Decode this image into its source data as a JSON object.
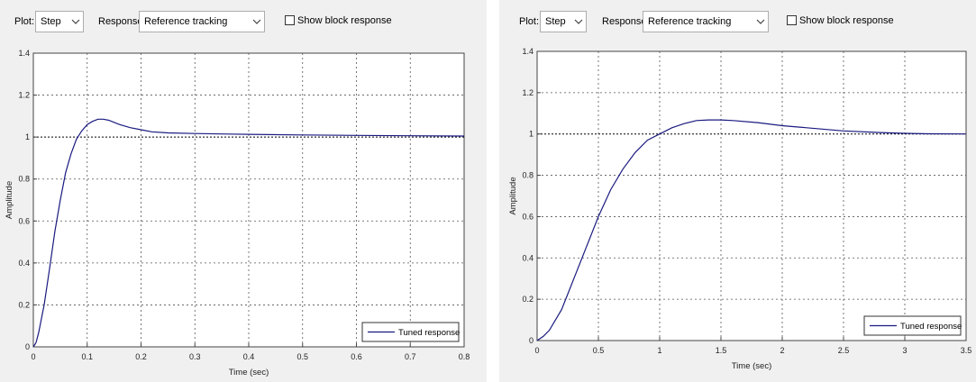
{
  "toolbar_common": {
    "plot_label": "Plot:",
    "plot_value": "Step",
    "response_label": "Response:",
    "response_value": "Reference tracking",
    "show_block_label": "Show block response"
  },
  "icons": {
    "dropdown": "chevron-down-icon",
    "checkbox": "checkbox-unchecked-icon"
  },
  "colors": {
    "curve": "#1a1a80",
    "plot_bg": "#ffffff",
    "panel_bg": "#f0f0f0",
    "reference": "#000000"
  },
  "chart_data": [
    {
      "type": "line",
      "title": "",
      "xlabel": "Time (sec)",
      "ylabel": "Amplitude",
      "xlim": [
        0,
        0.8
      ],
      "ylim": [
        0,
        1.4
      ],
      "xticks": [
        0,
        0.1,
        0.2,
        0.3,
        0.4,
        0.5,
        0.6,
        0.7,
        0.8
      ],
      "xtick_labels": [
        "0",
        "0.1",
        "0.2",
        "0.3",
        "0.4",
        "0.5",
        "0.6",
        "0.7",
        "0.8"
      ],
      "yticks": [
        0,
        0.2,
        0.4,
        0.6,
        0.8,
        1,
        1.2,
        1.4
      ],
      "ytick_labels": [
        "0",
        "0.2",
        "0.4",
        "0.6",
        "0.8",
        "1",
        "1.2",
        "1.4"
      ],
      "grid": true,
      "reference_line": 1,
      "legend": {
        "position": "bottom-right",
        "entries": [
          "Tuned response"
        ]
      },
      "series": [
        {
          "name": "Tuned response",
          "x": [
            0,
            0.005,
            0.01,
            0.02,
            0.03,
            0.04,
            0.05,
            0.06,
            0.07,
            0.08,
            0.09,
            0.1,
            0.11,
            0.12,
            0.13,
            0.14,
            0.15,
            0.16,
            0.18,
            0.2,
            0.22,
            0.25,
            0.3,
            0.35,
            0.4,
            0.5,
            0.6,
            0.7,
            0.8
          ],
          "y": [
            0,
            0.02,
            0.07,
            0.2,
            0.37,
            0.55,
            0.7,
            0.83,
            0.92,
            0.99,
            1.03,
            1.06,
            1.075,
            1.085,
            1.085,
            1.08,
            1.07,
            1.06,
            1.045,
            1.035,
            1.025,
            1.02,
            1.017,
            1.015,
            1.013,
            1.01,
            1.008,
            1.006,
            1.005
          ]
        }
      ]
    },
    {
      "type": "line",
      "title": "",
      "xlabel": "Time (sec)",
      "ylabel": "Amplitude",
      "xlim": [
        0,
        3.5
      ],
      "ylim": [
        0,
        1.4
      ],
      "xticks": [
        0,
        0.5,
        1,
        1.5,
        2,
        2.5,
        3,
        3.5
      ],
      "xtick_labels": [
        "0",
        "0.5",
        "1",
        "1.5",
        "2",
        "2.5",
        "3",
        "3.5"
      ],
      "yticks": [
        0,
        0.2,
        0.4,
        0.6,
        0.8,
        1,
        1.2,
        1.4
      ],
      "ytick_labels": [
        "0",
        "0.2",
        "0.4",
        "0.6",
        "0.8",
        "1",
        "1.2",
        "1.4"
      ],
      "grid": true,
      "reference_line": 1,
      "legend": {
        "position": "bottom-right",
        "entries": [
          "Tuned response"
        ]
      },
      "series": [
        {
          "name": "Tuned response",
          "x": [
            0,
            0.05,
            0.1,
            0.2,
            0.3,
            0.4,
            0.5,
            0.6,
            0.7,
            0.8,
            0.9,
            1,
            1.1,
            1.2,
            1.3,
            1.4,
            1.5,
            1.6,
            1.8,
            2,
            2.2,
            2.5,
            2.8,
            3,
            3.2,
            3.5
          ],
          "y": [
            0,
            0.02,
            0.05,
            0.15,
            0.3,
            0.45,
            0.6,
            0.73,
            0.83,
            0.91,
            0.97,
            1.0,
            1.03,
            1.05,
            1.065,
            1.068,
            1.068,
            1.065,
            1.055,
            1.04,
            1.03,
            1.015,
            1.007,
            1.003,
            1.001,
            1.0
          ]
        }
      ]
    }
  ]
}
